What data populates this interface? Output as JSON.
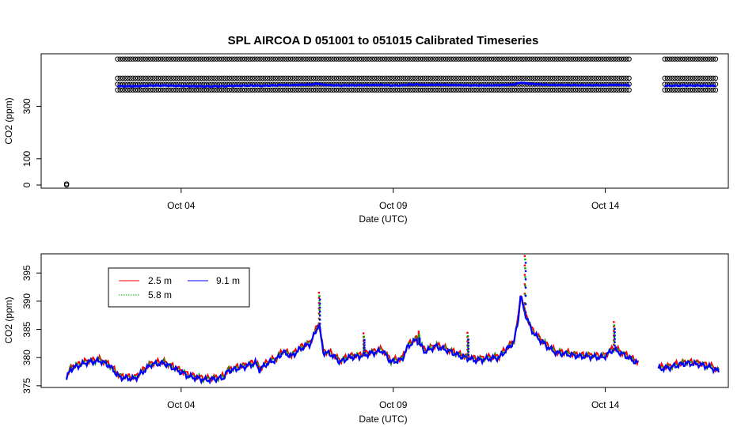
{
  "chart_data": [
    {
      "type": "scatter",
      "title": "SPL   AIRCOA  D    051001  to  051015   Calibrated Timeseries",
      "xlabel": "Date (UTC)",
      "ylabel": "CO2 (ppm)",
      "x_range_days": [
        0.7,
        16.9
      ],
      "ylim": [
        -12,
        500
      ],
      "y_ticks": [
        0,
        100,
        300
      ],
      "y_tick_labels": [
        "0",
        "100",
        "300"
      ],
      "x_ticks_day": [
        4,
        9,
        14
      ],
      "x_tick_labels": [
        "Oct 04",
        "Oct 09",
        "Oct 14"
      ],
      "grid": false,
      "calibration_levels_ppm": [
        480,
        407,
        384,
        362
      ],
      "cal_segments_days": [
        [
          2.5,
          14.6
        ],
        [
          15.4,
          16.6
        ]
      ],
      "outlier": {
        "x_day": 1.3,
        "y": 0
      },
      "series": [
        {
          "color": "#000000",
          "marker": "open-circle"
        },
        {
          "color": "#0000ff",
          "marker": "filled-point",
          "approx_y": 378
        }
      ]
    },
    {
      "type": "line",
      "xlabel": "Date (UTC)",
      "ylabel": "CO2 (ppm)",
      "x_range_days": [
        0.7,
        16.9
      ],
      "ylim": [
        374.7,
        398.4
      ],
      "y_ticks": [
        375,
        380,
        385,
        390,
        395
      ],
      "y_tick_labels": [
        "375",
        "380",
        "385",
        "390",
        "395"
      ],
      "x_ticks_day": [
        4,
        9,
        14
      ],
      "x_tick_labels": [
        "Oct 04",
        "Oct 09",
        "Oct 14"
      ],
      "grid": false,
      "legend_position": "top-left",
      "series": [
        {
          "name": "2.5 m",
          "color": "#ff0000",
          "offset": 0.3
        },
        {
          "name": "5.8 m",
          "color": "#00aa00",
          "offset": 0.15
        },
        {
          "name": "9.1 m",
          "color": "#0000ff",
          "offset": 0
        }
      ],
      "base_curve": [
        [
          1.3,
          376.3
        ],
        [
          1.4,
          378.0
        ],
        [
          1.8,
          379.2
        ],
        [
          2.1,
          379.4
        ],
        [
          2.3,
          378.6
        ],
        [
          2.55,
          376.5
        ],
        [
          2.9,
          376.2
        ],
        [
          3.3,
          378.8
        ],
        [
          3.6,
          379.0
        ],
        [
          3.9,
          377.8
        ],
        [
          4.2,
          376.6
        ],
        [
          4.6,
          376.0
        ],
        [
          5.0,
          376.4
        ],
        [
          5.1,
          377.6
        ],
        [
          5.5,
          378.4
        ],
        [
          5.75,
          379.0
        ],
        [
          5.85,
          377.8
        ],
        [
          6.0,
          378.8
        ],
        [
          6.25,
          379.7
        ],
        [
          6.4,
          381.0
        ],
        [
          6.6,
          380.2
        ],
        [
          6.8,
          381.5
        ],
        [
          7.05,
          382.5
        ],
        [
          7.25,
          386.0
        ],
        [
          7.35,
          381.0
        ],
        [
          7.55,
          380.5
        ],
        [
          7.75,
          379.2
        ],
        [
          7.95,
          380.0
        ],
        [
          8.2,
          380.2
        ],
        [
          8.5,
          380.8
        ],
        [
          8.75,
          381.2
        ],
        [
          8.95,
          379.2
        ],
        [
          9.2,
          379.6
        ],
        [
          9.35,
          382.0
        ],
        [
          9.55,
          383.2
        ],
        [
          9.75,
          381.0
        ],
        [
          10.0,
          382.0
        ],
        [
          10.3,
          381.2
        ],
        [
          10.6,
          380.2
        ],
        [
          10.95,
          379.5
        ],
        [
          11.25,
          379.8
        ],
        [
          11.5,
          380.0
        ],
        [
          11.85,
          382.8
        ],
        [
          11.95,
          387.0
        ],
        [
          12.0,
          391.0
        ],
        [
          12.1,
          388.0
        ],
        [
          12.25,
          385.0
        ],
        [
          12.4,
          383.5
        ],
        [
          12.55,
          382.5
        ],
        [
          12.7,
          381.5
        ],
        [
          12.85,
          380.8
        ],
        [
          13.1,
          380.6
        ],
        [
          13.4,
          380.2
        ],
        [
          13.6,
          380.2
        ],
        [
          13.95,
          380.0
        ],
        [
          14.2,
          381.5
        ],
        [
          14.5,
          380.2
        ],
        [
          14.8,
          378.8
        ],
        [
          15.25,
          378.0
        ],
        [
          15.5,
          378.2
        ],
        [
          15.9,
          379.0
        ],
        [
          16.2,
          378.8
        ],
        [
          16.5,
          378.2
        ],
        [
          16.7,
          377.4
        ]
      ],
      "gaps_days": [
        [
          14.8,
          15.25
        ],
        [
          16.7,
          17
        ]
      ],
      "spikes": [
        {
          "x_day": 7.25,
          "y": 391.5
        },
        {
          "x_day": 12.1,
          "y": 398.0
        },
        {
          "x_day": 14.2,
          "y": 386.3
        },
        {
          "x_day": 9.6,
          "y": 384.6
        },
        {
          "x_day": 8.3,
          "y": 384.3
        },
        {
          "x_day": 10.75,
          "y": 384.4
        }
      ]
    }
  ]
}
